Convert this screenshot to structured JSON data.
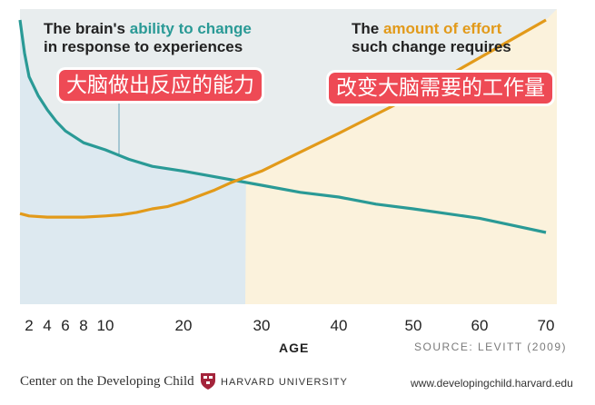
{
  "chart_data": {
    "type": "line",
    "xlabel": "AGE",
    "xticks": [
      2,
      4,
      6,
      8,
      10,
      20,
      30,
      40,
      50,
      60,
      70
    ],
    "xlim": [
      0,
      71
    ],
    "ylim": [
      0,
      100
    ],
    "series": [
      {
        "name": "The brain's ability to change in response to experiences",
        "color": "#2a9a96",
        "x": [
          0,
          1,
          2,
          3,
          4,
          5,
          6,
          8,
          10,
          13,
          16,
          20,
          25,
          30,
          35,
          40,
          45,
          50,
          55,
          60,
          65,
          70
        ],
        "y": [
          100,
          86,
          76,
          68,
          62,
          57,
          53,
          48,
          45,
          41,
          38,
          36,
          33,
          30,
          27,
          25,
          22,
          20,
          18,
          16,
          13,
          10
        ]
      },
      {
        "name": "The amount of effort such change requires",
        "color": "#e29a1a",
        "x": [
          0,
          2,
          4,
          6,
          8,
          10,
          12,
          14,
          16,
          18,
          20,
          22,
          24,
          26,
          28,
          30,
          35,
          40,
          45,
          50,
          55,
          60,
          65,
          70
        ],
        "y": [
          18,
          17,
          16.5,
          16.5,
          16.5,
          17,
          17.5,
          18.5,
          20,
          21,
          23,
          25.5,
          28,
          31,
          33.5,
          36,
          44,
          52,
          60,
          68,
          76,
          84,
          92,
          100
        ]
      }
    ]
  },
  "labels": {
    "left_pre": "The brain's ",
    "left_hl": "ability to change",
    "left_line2": "in response to experiences",
    "right_pre": "The ",
    "right_hl": "amount of effort",
    "right_line2": "such change requires",
    "left_cn": "大脑做出反应的能力",
    "right_cn": "改变大脑需要的工作量"
  },
  "source": "SOURCE: LEVITT (2009)",
  "footer": {
    "org": "Center on the Developing Child",
    "university": "HARVARD UNIVERSITY",
    "url": "www.developingchild.harvard.edu"
  },
  "colors": {
    "panel_bg": "#e8edee",
    "teal_fill": "#dde9f0",
    "orange_fill": "#fbf2dc",
    "seal": "#a4243b"
  }
}
